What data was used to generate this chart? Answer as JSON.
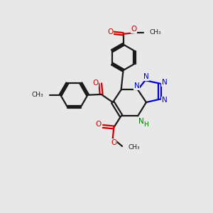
{
  "bg_color": "#e8e8e8",
  "bond_color": "#1a1a1a",
  "bond_width": 1.6,
  "N_color": "#0000cc",
  "O_color": "#cc0000",
  "NH_color": "#007700",
  "C_color": "#1a1a1a",
  "fig_size": [
    3.0,
    3.0
  ],
  "dpi": 100,
  "xlim": [
    0,
    10
  ],
  "ylim": [
    0,
    10
  ]
}
